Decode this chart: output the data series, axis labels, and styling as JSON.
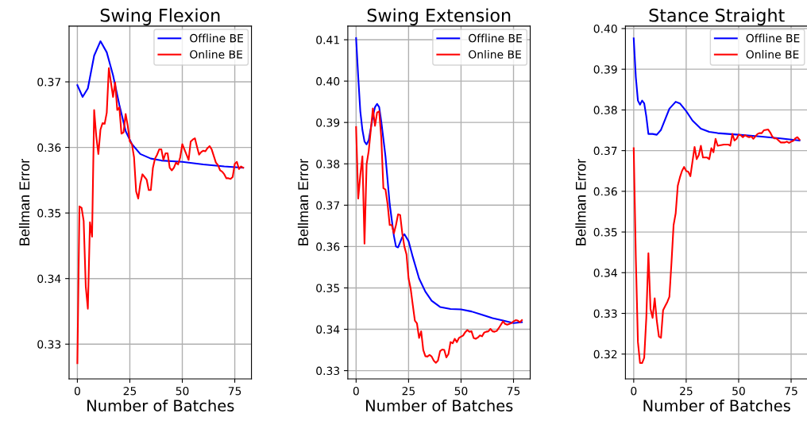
{
  "chart_data": [
    {
      "type": "line",
      "title": "Swing Flexion",
      "xlabel": "Number of Batches",
      "ylabel": "Bellman Error",
      "xlim": [
        -3.95,
        82.95
      ],
      "ylim": [
        0.3247,
        0.3785
      ],
      "xticks": [
        0,
        25,
        50,
        75
      ],
      "yticks": [
        0.33,
        0.34,
        0.35,
        0.36,
        0.37
      ],
      "grid": true,
      "legend": "top right",
      "line_style": "solid",
      "series": [
        {
          "name": "Offline BE",
          "color": "#0000ff",
          "x": [
            0,
            2.5,
            5,
            8,
            11,
            14,
            17,
            20,
            23,
            26,
            30,
            35,
            40,
            50,
            60,
            70,
            79
          ],
          "values": [
            0.3695,
            0.3677,
            0.369,
            0.374,
            0.3762,
            0.3745,
            0.371,
            0.3665,
            0.3625,
            0.3605,
            0.359,
            0.3583,
            0.358,
            0.3578,
            0.3574,
            0.3571,
            0.3569
          ]
        },
        {
          "name": "Online BE",
          "color": "#ff0000",
          "x": [
            0,
            1,
            2,
            3,
            4,
            5,
            6,
            7,
            8,
            9,
            10,
            11,
            12,
            13,
            14,
            15,
            16,
            17,
            18,
            19,
            20,
            21,
            22,
            23,
            24,
            25,
            26,
            27,
            28,
            29,
            30,
            31,
            32,
            33,
            34,
            35,
            36,
            37,
            38,
            39,
            40,
            41,
            42,
            43,
            44,
            45,
            46,
            47,
            48,
            49,
            50,
            51,
            52,
            53,
            54,
            55,
            56,
            57,
            58,
            59,
            60,
            61,
            62,
            63,
            64,
            65,
            66,
            67,
            68,
            69,
            70,
            71,
            72,
            73,
            74,
            75,
            76,
            77,
            78,
            79
          ],
          "values": [
            0.3271,
            0.351,
            0.3508,
            0.3488,
            0.3388,
            0.3354,
            0.3486,
            0.3464,
            0.3657,
            0.3617,
            0.359,
            0.3627,
            0.3637,
            0.3636,
            0.3653,
            0.3721,
            0.3699,
            0.3677,
            0.3699,
            0.3657,
            0.3661,
            0.3621,
            0.3623,
            0.3651,
            0.3633,
            0.3609,
            0.3605,
            0.3585,
            0.3533,
            0.3522,
            0.3545,
            0.3559,
            0.3555,
            0.3551,
            0.3535,
            0.3535,
            0.3569,
            0.3583,
            0.3589,
            0.3597,
            0.3597,
            0.3581,
            0.3591,
            0.3591,
            0.3569,
            0.3565,
            0.3569,
            0.3577,
            0.3574,
            0.3585,
            0.3605,
            0.3597,
            0.3589,
            0.3581,
            0.3609,
            0.3612,
            0.3614,
            0.3601,
            0.3589,
            0.3593,
            0.3595,
            0.3594,
            0.3599,
            0.3602,
            0.3597,
            0.3587,
            0.3577,
            0.3573,
            0.3565,
            0.3563,
            0.3559,
            0.3553,
            0.3553,
            0.3552,
            0.3555,
            0.3575,
            0.3578,
            0.3567,
            0.3571,
            0.3569
          ]
        }
      ]
    },
    {
      "type": "line",
      "title": "Swing Extension",
      "xlabel": "Number of Batches",
      "ylabel": "Bellman Error",
      "xlim": [
        -3.95,
        82.95
      ],
      "ylim": [
        0.328,
        0.4133
      ],
      "xticks": [
        0,
        25,
        50,
        75
      ],
      "yticks": [
        0.33,
        0.34,
        0.35,
        0.36,
        0.37,
        0.38,
        0.39,
        {
          "value": 0.4,
          "label": "0.40"
        },
        0.41
      ],
      "grid": true,
      "legend": "top right",
      "line_style": "solid",
      "series": [
        {
          "name": "Offline BE",
          "color": "#0000ff",
          "x": [
            0,
            1,
            2,
            3,
            4,
            5,
            6,
            8,
            9,
            10,
            11,
            12,
            14,
            16,
            18,
            19,
            20,
            22,
            23,
            25,
            27,
            30,
            33,
            36,
            40,
            45,
            50,
            55,
            60,
            65,
            70,
            75,
            79
          ],
          "values": [
            0.4104,
            0.4011,
            0.3927,
            0.3882,
            0.3854,
            0.3847,
            0.3857,
            0.3915,
            0.3937,
            0.3945,
            0.3937,
            0.3902,
            0.3818,
            0.3703,
            0.3626,
            0.36,
            0.3598,
            0.3623,
            0.363,
            0.3613,
            0.3575,
            0.3523,
            0.3491,
            0.3469,
            0.3454,
            0.3449,
            0.3448,
            0.3443,
            0.3435,
            0.3427,
            0.3421,
            0.3415,
            0.3417
          ]
        },
        {
          "name": "Online BE",
          "color": "#ff0000",
          "x": [
            0,
            1,
            2,
            3,
            4,
            5,
            6,
            7,
            8,
            9,
            10,
            11,
            12,
            13,
            14,
            15,
            16,
            17,
            18,
            19,
            20,
            21,
            22,
            23,
            24,
            25,
            26,
            27,
            28,
            29,
            30,
            31,
            32,
            33,
            34,
            35,
            36,
            37,
            38,
            39,
            40,
            41,
            42,
            43,
            44,
            45,
            46,
            47,
            48,
            49,
            50,
            51,
            52,
            53,
            54,
            55,
            56,
            57,
            58,
            59,
            60,
            61,
            62,
            63,
            64,
            65,
            66,
            67,
            68,
            69,
            70,
            71,
            72,
            73,
            74,
            75,
            76,
            77,
            78,
            79
          ],
          "values": [
            0.3889,
            0.3716,
            0.3773,
            0.3818,
            0.3607,
            0.3799,
            0.3831,
            0.3882,
            0.3934,
            0.3892,
            0.3924,
            0.3927,
            0.3863,
            0.3741,
            0.3738,
            0.3703,
            0.3652,
            0.3652,
            0.3632,
            0.3652,
            0.3678,
            0.3676,
            0.3632,
            0.36,
            0.3581,
            0.3523,
            0.3498,
            0.3459,
            0.3421,
            0.3414,
            0.3379,
            0.3395,
            0.335,
            0.3335,
            0.3334,
            0.3338,
            0.3334,
            0.3324,
            0.3319,
            0.3324,
            0.3347,
            0.3351,
            0.335,
            0.3332,
            0.334,
            0.3369,
            0.3366,
            0.3377,
            0.3369,
            0.3379,
            0.3382,
            0.3385,
            0.3393,
            0.3398,
            0.3394,
            0.3395,
            0.3379,
            0.3377,
            0.338,
            0.3385,
            0.3383,
            0.3392,
            0.3394,
            0.3395,
            0.3401,
            0.3395,
            0.3394,
            0.3396,
            0.3403,
            0.3411,
            0.3419,
            0.3413,
            0.3411,
            0.3413,
            0.3415,
            0.3419,
            0.3422,
            0.3421,
            0.3417,
            0.3422
          ]
        }
      ]
    },
    {
      "type": "line",
      "title": "Stance Straight",
      "xlabel": "Number of Batches",
      "ylabel": "Bellman Error",
      "xlim": [
        -3.95,
        82.95
      ],
      "ylim": [
        0.3139,
        0.4006
      ],
      "xticks": [
        0,
        25,
        50,
        75
      ],
      "yticks": [
        0.32,
        0.33,
        0.34,
        0.35,
        0.36,
        0.37,
        0.38,
        0.39,
        {
          "value": 0.4,
          "label": "0.40"
        }
      ],
      "grid": true,
      "legend": "top right",
      "line_style": "solid",
      "series": [
        {
          "name": "Offline BE",
          "color": "#0000ff",
          "x": [
            0,
            1,
            2,
            3,
            4,
            5,
            6,
            7,
            9,
            11,
            13,
            15,
            17,
            20,
            22,
            25,
            28,
            32,
            36,
            40,
            50,
            60,
            70,
            79
          ],
          "values": [
            0.3976,
            0.3881,
            0.3823,
            0.3813,
            0.3823,
            0.3816,
            0.3784,
            0.3741,
            0.3741,
            0.3739,
            0.3751,
            0.3777,
            0.3803,
            0.382,
            0.3816,
            0.3797,
            0.3774,
            0.3754,
            0.3746,
            0.3743,
            0.3739,
            0.3735,
            0.373,
            0.3725
          ]
        },
        {
          "name": "Online BE",
          "color": "#ff0000",
          "x": [
            0,
            1,
            2,
            3,
            4,
            5,
            6,
            7,
            8,
            9,
            10,
            11,
            12,
            13,
            14,
            15,
            16,
            17,
            18,
            19,
            20,
            21,
            22,
            23,
            24,
            25,
            26,
            27,
            28,
            29,
            30,
            31,
            32,
            33,
            34,
            35,
            36,
            37,
            38,
            39,
            40,
            41,
            43,
            45,
            46,
            47,
            48,
            49,
            50,
            51,
            52,
            53,
            54,
            55,
            56,
            57,
            58,
            59,
            60,
            61,
            62,
            63,
            64,
            65,
            66,
            67,
            68,
            69,
            70,
            71,
            72,
            73,
            74,
            75,
            76,
            77,
            78,
            79
          ],
          "values": [
            0.3706,
            0.3438,
            0.323,
            0.3178,
            0.3178,
            0.3191,
            0.3289,
            0.3448,
            0.3311,
            0.3289,
            0.3337,
            0.3282,
            0.3243,
            0.324,
            0.3308,
            0.3318,
            0.3328,
            0.3341,
            0.3425,
            0.3517,
            0.3546,
            0.3614,
            0.3634,
            0.365,
            0.366,
            0.365,
            0.3648,
            0.3637,
            0.3673,
            0.3709,
            0.3679,
            0.3689,
            0.3712,
            0.3683,
            0.3683,
            0.3683,
            0.3679,
            0.3706,
            0.3696,
            0.3729,
            0.3712,
            0.3713,
            0.3715,
            0.3715,
            0.3712,
            0.3741,
            0.3725,
            0.3729,
            0.3739,
            0.3738,
            0.3733,
            0.3738,
            0.3735,
            0.3733,
            0.3735,
            0.3729,
            0.3735,
            0.3741,
            0.3743,
            0.3743,
            0.375,
            0.3751,
            0.3752,
            0.3745,
            0.3735,
            0.373,
            0.373,
            0.3725,
            0.372,
            0.372,
            0.372,
            0.3722,
            0.3719,
            0.3722,
            0.3724,
            0.373,
            0.3733,
            0.3727
          ]
        }
      ]
    }
  ]
}
